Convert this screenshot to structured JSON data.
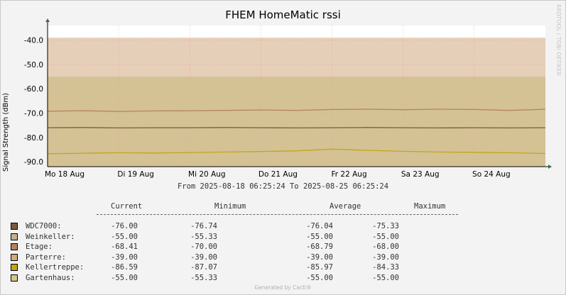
{
  "chart_data": {
    "type": "line",
    "title": "FHEM HomeMatic rssi",
    "ylabel": "Signal Strength (dBm)",
    "ylim": [
      -92,
      -34
    ],
    "yticks": [
      -40.0,
      -50.0,
      -60.0,
      -70.0,
      -80.0,
      -90.0
    ],
    "ytick_labels": [
      "-40.0",
      "-50.0",
      "-60.0",
      "-70.0",
      "-80.0",
      "-90.0"
    ],
    "xlim_days": [
      0,
      7
    ],
    "xticks": [
      {
        "day": 0.0,
        "label": "Mo 18 Aug"
      },
      {
        "day": 1.0,
        "label": "Di 19 Aug"
      },
      {
        "day": 2.0,
        "label": "Mi 20 Aug"
      },
      {
        "day": 3.0,
        "label": "Do 21 Aug"
      },
      {
        "day": 4.0,
        "label": "Fr 22 Aug"
      },
      {
        "day": 5.0,
        "label": "Sa 23 Aug"
      },
      {
        "day": 6.0,
        "label": "So 24 Aug"
      }
    ],
    "grid": true,
    "series": [
      {
        "name": "WDC7000:",
        "color": "#7b5a3e",
        "style": "line",
        "current": "-76.00",
        "minimum": "-76.74",
        "average": "-76.04",
        "maximum": "-75.33",
        "x": [
          0,
          0.5,
          1,
          1.5,
          2,
          2.5,
          3,
          3.5,
          4,
          4.5,
          5,
          5.5,
          6,
          6.5,
          7
        ],
        "y": [
          -76.0,
          -75.9,
          -76.1,
          -76.0,
          -76.0,
          -75.9,
          -76.0,
          -76.1,
          -76.0,
          -75.9,
          -76.0,
          -76.1,
          -76.0,
          -76.1,
          -76.0
        ]
      },
      {
        "name": "Weinkeller:",
        "color": "#c4b08f",
        "style": "area",
        "current": "-55.00",
        "minimum": "-55.33",
        "average": "-55.00",
        "maximum": "-55.00",
        "x": [
          0,
          7
        ],
        "y": [
          -55.0,
          -55.0
        ]
      },
      {
        "name": "Etage:",
        "color": "#b5835f",
        "style": "line",
        "current": "-68.41",
        "minimum": "-70.00",
        "average": "-68.79",
        "maximum": "-68.00",
        "x": [
          0,
          0.5,
          1,
          1.5,
          2,
          2.5,
          3,
          3.5,
          4,
          4.5,
          5,
          5.5,
          6,
          6.5,
          7
        ],
        "y": [
          -69.2,
          -69.0,
          -69.3,
          -69.1,
          -69.0,
          -68.9,
          -68.7,
          -68.9,
          -68.5,
          -68.4,
          -68.6,
          -68.4,
          -68.5,
          -68.9,
          -68.4
        ]
      },
      {
        "name": "Parterre:",
        "color": "#d2a87d",
        "style": "area",
        "current": "-39.00",
        "minimum": "-39.00",
        "average": "-39.00",
        "maximum": "-39.00",
        "x": [
          0,
          7
        ],
        "y": [
          -39.0,
          -39.0
        ]
      },
      {
        "name": "Kellertreppe:",
        "color": "#c2a51c",
        "style": "line",
        "current": "-86.59",
        "minimum": "-87.07",
        "average": "-85.97",
        "maximum": "-84.33",
        "x": [
          0,
          0.5,
          1,
          1.5,
          2,
          2.5,
          3,
          3.5,
          4,
          4.5,
          5,
          5.5,
          6,
          6.5,
          7
        ],
        "y": [
          -86.7,
          -86.5,
          -86.3,
          -86.4,
          -86.2,
          -86.0,
          -85.8,
          -85.5,
          -84.8,
          -85.3,
          -85.7,
          -86.0,
          -86.1,
          -86.3,
          -86.6
        ]
      },
      {
        "name": "Gartenhaus:",
        "color": "#d4c589",
        "style": "area",
        "current": "-55.00",
        "minimum": "-55.33",
        "average": "-55.00",
        "maximum": "-55.00",
        "x": [
          0,
          7
        ],
        "y": [
          -55.0,
          -55.0
        ]
      }
    ]
  },
  "side_text": "RRDTOOL / TOBI OETIKER",
  "range_text": "From 2025-08-18 06:25:24 To 2025-08-25 06:25:24",
  "legend_headers": {
    "current": "Current",
    "minimum": "Minimum",
    "average": "Average",
    "maximum": "Maximum"
  },
  "footer": "Generated by Cacti®"
}
